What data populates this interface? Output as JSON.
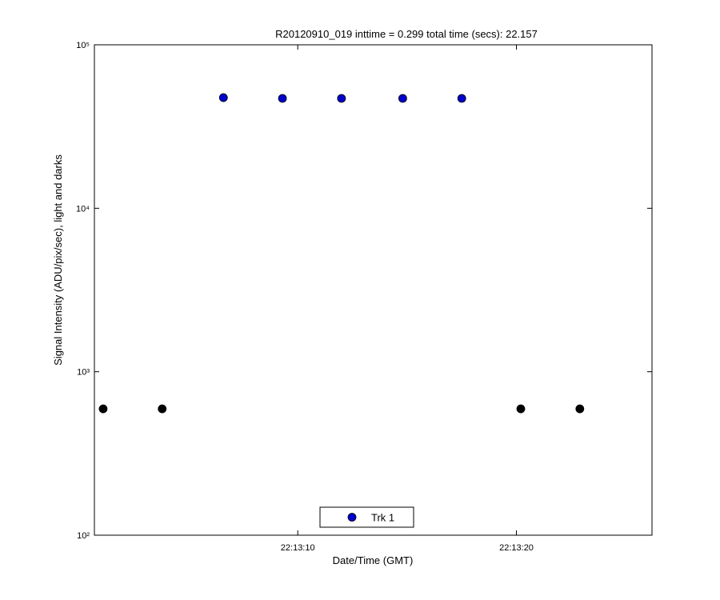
{
  "chart_data": {
    "type": "scatter",
    "title": "R20120910_019 inttime = 0.299 total time (secs): 22.157",
    "x_label": "Date/Time (GMT)",
    "y_label": "Signal Intensity (ADU/pix/sec), light and darks",
    "xlim": [
      "22:13:00.7",
      "22:13:26.2"
    ],
    "xticks": [
      "22:13:10",
      "22:13:20"
    ],
    "ylim": [
      100,
      100000
    ],
    "yscale": "log",
    "yticks": [
      {
        "value": 100,
        "label": "10²"
      },
      {
        "value": 1000,
        "label": "10³"
      },
      {
        "value": 10000,
        "label": "10⁴"
      },
      {
        "value": 100000,
        "label": "10⁵"
      }
    ],
    "legend": "bottom",
    "series": [
      {
        "name": "Trk 1",
        "color": "#0000cc",
        "x": [
          "22:13:06.6",
          "22:13:09.3",
          "22:13:12.0",
          "22:13:14.8",
          "22:13:17.5"
        ],
        "values": [
          47500,
          47000,
          47000,
          47000,
          47000
        ]
      },
      {
        "color": "#000000",
        "x": [
          "22:13:01.1",
          "22:13:03.8",
          "22:13:20.2",
          "22:13:22.9"
        ],
        "values": [
          593,
          593,
          593,
          593
        ]
      }
    ]
  }
}
